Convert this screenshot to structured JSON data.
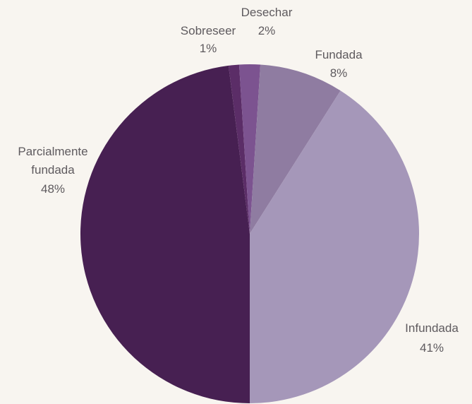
{
  "chart_data": {
    "type": "pie",
    "categories": [
      "Parcialmente fundada",
      "Sobreseer",
      "Desechar",
      "Fundada",
      "Infundada"
    ],
    "values": [
      48,
      1,
      2,
      8,
      41
    ],
    "value_labels": [
      "48%",
      "1%",
      "2%",
      "8%",
      "41%"
    ],
    "colors": [
      "#472052",
      "#5b2d67",
      "#7c5390",
      "#8f7ca1",
      "#a597b9"
    ]
  }
}
